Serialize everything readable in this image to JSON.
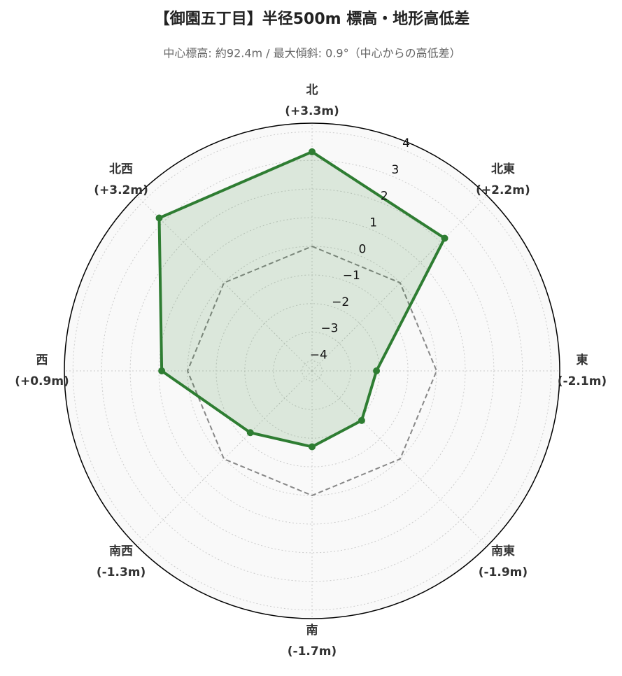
{
  "chart_data": {
    "type": "radar",
    "title": "【御園五丁目】半径500m 標高・地形高低差",
    "subtitle": "中心標高: 約92.4m / 最大傾斜: 0.9°（中心からの高低差）",
    "categories": [
      "北",
      "北東",
      "東",
      "南東",
      "南",
      "南西",
      "西",
      "北西"
    ],
    "values": [
      3.3,
      2.2,
      -2.1,
      -1.9,
      -1.7,
      -1.3,
      0.9,
      3.2
    ],
    "value_labels": [
      "(+3.3m)",
      "(+2.2m)",
      "(-2.1m)",
      "(-1.9m)",
      "(-1.7m)",
      "(-1.3m)",
      "(+0.9m)",
      "(+3.2m)"
    ],
    "color": "#2e7d32",
    "reference": {
      "value": 0,
      "color": "#888888"
    },
    "ylim": [
      -4.35,
      4.3
    ],
    "yticks": [
      {
        "value": -4,
        "label": "−4"
      },
      {
        "value": -3,
        "label": "−3"
      },
      {
        "value": -2,
        "label": "−2"
      },
      {
        "value": -1,
        "label": "−1"
      },
      0,
      1,
      2,
      3,
      4
    ],
    "grid": true
  }
}
